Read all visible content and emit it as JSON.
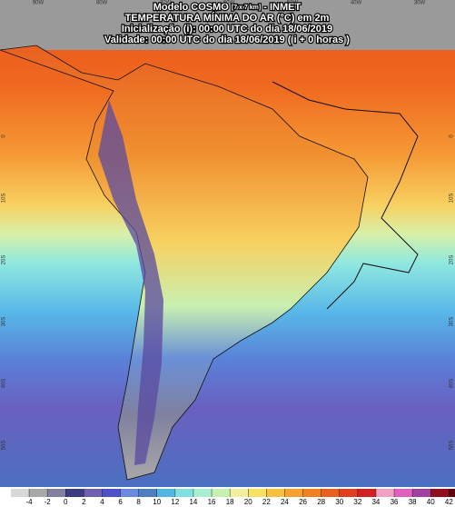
{
  "header": {
    "model": "Modelo COSMO",
    "resolution": "[7 x 7 km]",
    "source": "- INMET",
    "title": "TEMPERATURA MÍNIMA DO AR (°C) em 2m",
    "init": "Inicialização (i): 00:00 UTC do dia 18/06/2019",
    "valid": "Validade: 00:00 UTC do dia 18/06/2019 ( i + 0 horas )"
  },
  "longitudes": [
    "90W",
    "80W",
    "70W",
    "60W",
    "50W",
    "40W",
    "30W"
  ],
  "latitudes": [
    "0",
    "10S",
    "20S",
    "30S",
    "40S",
    "50S"
  ],
  "colorbar": {
    "ticks": [
      -4,
      -2,
      0,
      2,
      4,
      6,
      8,
      10,
      12,
      14,
      16,
      18,
      20,
      22,
      24,
      26,
      28,
      30,
      32,
      34,
      36,
      38,
      40,
      42
    ],
    "colors": [
      "#d8d8d8",
      "#a8a8a8",
      "#8080a0",
      "#3c3c80",
      "#7060b0",
      "#5050c8",
      "#6a8ae0",
      "#4f7fc0",
      "#50b8e0",
      "#80e0e0",
      "#a8f0d0",
      "#c8f0b0",
      "#f0f0a0",
      "#f8e060",
      "#f8c040",
      "#f8a030",
      "#f08020",
      "#e86020",
      "#e04020",
      "#d02020",
      "#f0a0c0",
      "#e060c0",
      "#a040a0",
      "#901020",
      "#600010"
    ]
  }
}
